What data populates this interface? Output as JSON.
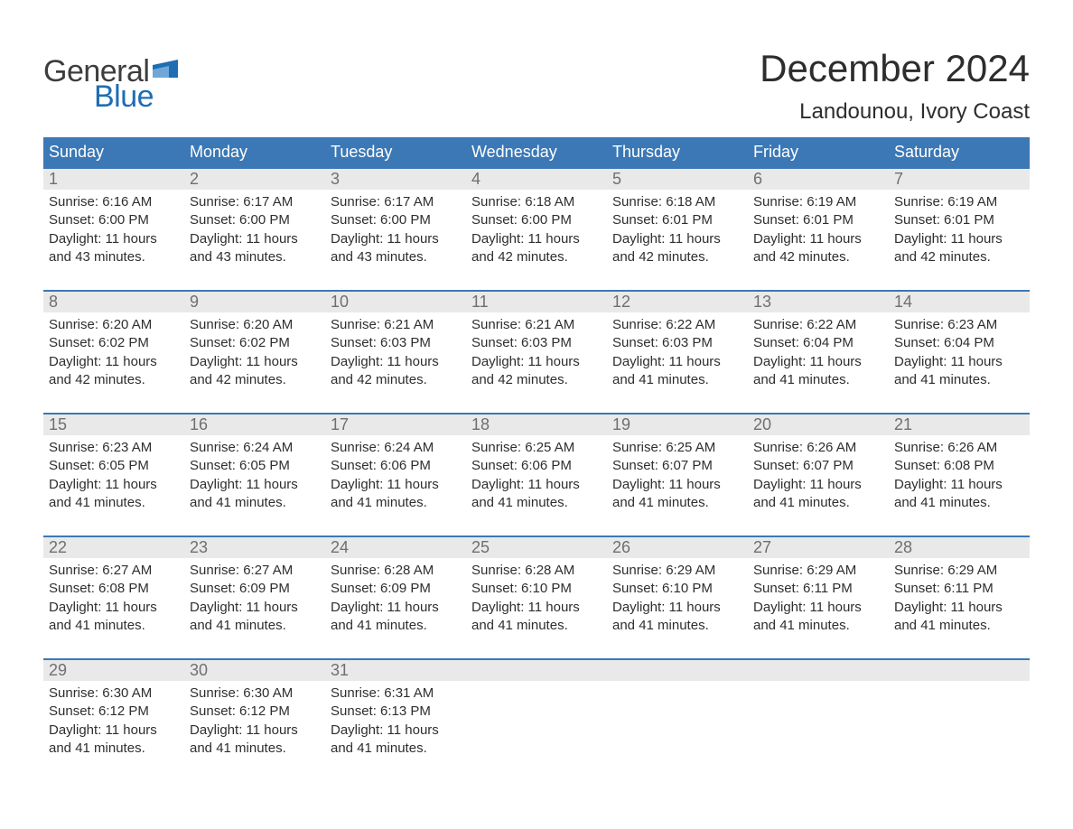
{
  "colors": {
    "header_blue": "#3b78b5",
    "week_rule_blue": "#3b78b5",
    "daynum_bg": "#e9e9e9",
    "daynum_text": "#6f6f6f",
    "body_text": "#2e2e2e",
    "logo_blue": "#1f6db3",
    "logo_grey": "#3d3d3d",
    "page_bg": "#ffffff"
  },
  "typography": {
    "month_title_fontsize": 42,
    "location_fontsize": 24,
    "dow_fontsize": 18,
    "daynum_fontsize": 18,
    "body_fontsize": 15,
    "logo_fontsize": 34
  },
  "logo": {
    "top": "General",
    "bottom": "Blue"
  },
  "title": {
    "month": "December 2024",
    "location": "Landounou, Ivory Coast"
  },
  "days_of_week": [
    "Sunday",
    "Monday",
    "Tuesday",
    "Wednesday",
    "Thursday",
    "Friday",
    "Saturday"
  ],
  "weeks": [
    [
      {
        "num": "1",
        "sunrise": "Sunrise: 6:16 AM",
        "sunset": "Sunset: 6:00 PM",
        "day1": "Daylight: 11 hours",
        "day2": "and 43 minutes."
      },
      {
        "num": "2",
        "sunrise": "Sunrise: 6:17 AM",
        "sunset": "Sunset: 6:00 PM",
        "day1": "Daylight: 11 hours",
        "day2": "and 43 minutes."
      },
      {
        "num": "3",
        "sunrise": "Sunrise: 6:17 AM",
        "sunset": "Sunset: 6:00 PM",
        "day1": "Daylight: 11 hours",
        "day2": "and 43 minutes."
      },
      {
        "num": "4",
        "sunrise": "Sunrise: 6:18 AM",
        "sunset": "Sunset: 6:00 PM",
        "day1": "Daylight: 11 hours",
        "day2": "and 42 minutes."
      },
      {
        "num": "5",
        "sunrise": "Sunrise: 6:18 AM",
        "sunset": "Sunset: 6:01 PM",
        "day1": "Daylight: 11 hours",
        "day2": "and 42 minutes."
      },
      {
        "num": "6",
        "sunrise": "Sunrise: 6:19 AM",
        "sunset": "Sunset: 6:01 PM",
        "day1": "Daylight: 11 hours",
        "day2": "and 42 minutes."
      },
      {
        "num": "7",
        "sunrise": "Sunrise: 6:19 AM",
        "sunset": "Sunset: 6:01 PM",
        "day1": "Daylight: 11 hours",
        "day2": "and 42 minutes."
      }
    ],
    [
      {
        "num": "8",
        "sunrise": "Sunrise: 6:20 AM",
        "sunset": "Sunset: 6:02 PM",
        "day1": "Daylight: 11 hours",
        "day2": "and 42 minutes."
      },
      {
        "num": "9",
        "sunrise": "Sunrise: 6:20 AM",
        "sunset": "Sunset: 6:02 PM",
        "day1": "Daylight: 11 hours",
        "day2": "and 42 minutes."
      },
      {
        "num": "10",
        "sunrise": "Sunrise: 6:21 AM",
        "sunset": "Sunset: 6:03 PM",
        "day1": "Daylight: 11 hours",
        "day2": "and 42 minutes."
      },
      {
        "num": "11",
        "sunrise": "Sunrise: 6:21 AM",
        "sunset": "Sunset: 6:03 PM",
        "day1": "Daylight: 11 hours",
        "day2": "and 42 minutes."
      },
      {
        "num": "12",
        "sunrise": "Sunrise: 6:22 AM",
        "sunset": "Sunset: 6:03 PM",
        "day1": "Daylight: 11 hours",
        "day2": "and 41 minutes."
      },
      {
        "num": "13",
        "sunrise": "Sunrise: 6:22 AM",
        "sunset": "Sunset: 6:04 PM",
        "day1": "Daylight: 11 hours",
        "day2": "and 41 minutes."
      },
      {
        "num": "14",
        "sunrise": "Sunrise: 6:23 AM",
        "sunset": "Sunset: 6:04 PM",
        "day1": "Daylight: 11 hours",
        "day2": "and 41 minutes."
      }
    ],
    [
      {
        "num": "15",
        "sunrise": "Sunrise: 6:23 AM",
        "sunset": "Sunset: 6:05 PM",
        "day1": "Daylight: 11 hours",
        "day2": "and 41 minutes."
      },
      {
        "num": "16",
        "sunrise": "Sunrise: 6:24 AM",
        "sunset": "Sunset: 6:05 PM",
        "day1": "Daylight: 11 hours",
        "day2": "and 41 minutes."
      },
      {
        "num": "17",
        "sunrise": "Sunrise: 6:24 AM",
        "sunset": "Sunset: 6:06 PM",
        "day1": "Daylight: 11 hours",
        "day2": "and 41 minutes."
      },
      {
        "num": "18",
        "sunrise": "Sunrise: 6:25 AM",
        "sunset": "Sunset: 6:06 PM",
        "day1": "Daylight: 11 hours",
        "day2": "and 41 minutes."
      },
      {
        "num": "19",
        "sunrise": "Sunrise: 6:25 AM",
        "sunset": "Sunset: 6:07 PM",
        "day1": "Daylight: 11 hours",
        "day2": "and 41 minutes."
      },
      {
        "num": "20",
        "sunrise": "Sunrise: 6:26 AM",
        "sunset": "Sunset: 6:07 PM",
        "day1": "Daylight: 11 hours",
        "day2": "and 41 minutes."
      },
      {
        "num": "21",
        "sunrise": "Sunrise: 6:26 AM",
        "sunset": "Sunset: 6:08 PM",
        "day1": "Daylight: 11 hours",
        "day2": "and 41 minutes."
      }
    ],
    [
      {
        "num": "22",
        "sunrise": "Sunrise: 6:27 AM",
        "sunset": "Sunset: 6:08 PM",
        "day1": "Daylight: 11 hours",
        "day2": "and 41 minutes."
      },
      {
        "num": "23",
        "sunrise": "Sunrise: 6:27 AM",
        "sunset": "Sunset: 6:09 PM",
        "day1": "Daylight: 11 hours",
        "day2": "and 41 minutes."
      },
      {
        "num": "24",
        "sunrise": "Sunrise: 6:28 AM",
        "sunset": "Sunset: 6:09 PM",
        "day1": "Daylight: 11 hours",
        "day2": "and 41 minutes."
      },
      {
        "num": "25",
        "sunrise": "Sunrise: 6:28 AM",
        "sunset": "Sunset: 6:10 PM",
        "day1": "Daylight: 11 hours",
        "day2": "and 41 minutes."
      },
      {
        "num": "26",
        "sunrise": "Sunrise: 6:29 AM",
        "sunset": "Sunset: 6:10 PM",
        "day1": "Daylight: 11 hours",
        "day2": "and 41 minutes."
      },
      {
        "num": "27",
        "sunrise": "Sunrise: 6:29 AM",
        "sunset": "Sunset: 6:11 PM",
        "day1": "Daylight: 11 hours",
        "day2": "and 41 minutes."
      },
      {
        "num": "28",
        "sunrise": "Sunrise: 6:29 AM",
        "sunset": "Sunset: 6:11 PM",
        "day1": "Daylight: 11 hours",
        "day2": "and 41 minutes."
      }
    ],
    [
      {
        "num": "29",
        "sunrise": "Sunrise: 6:30 AM",
        "sunset": "Sunset: 6:12 PM",
        "day1": "Daylight: 11 hours",
        "day2": "and 41 minutes."
      },
      {
        "num": "30",
        "sunrise": "Sunrise: 6:30 AM",
        "sunset": "Sunset: 6:12 PM",
        "day1": "Daylight: 11 hours",
        "day2": "and 41 minutes."
      },
      {
        "num": "31",
        "sunrise": "Sunrise: 6:31 AM",
        "sunset": "Sunset: 6:13 PM",
        "day1": "Daylight: 11 hours",
        "day2": "and 41 minutes."
      },
      null,
      null,
      null,
      null
    ]
  ]
}
